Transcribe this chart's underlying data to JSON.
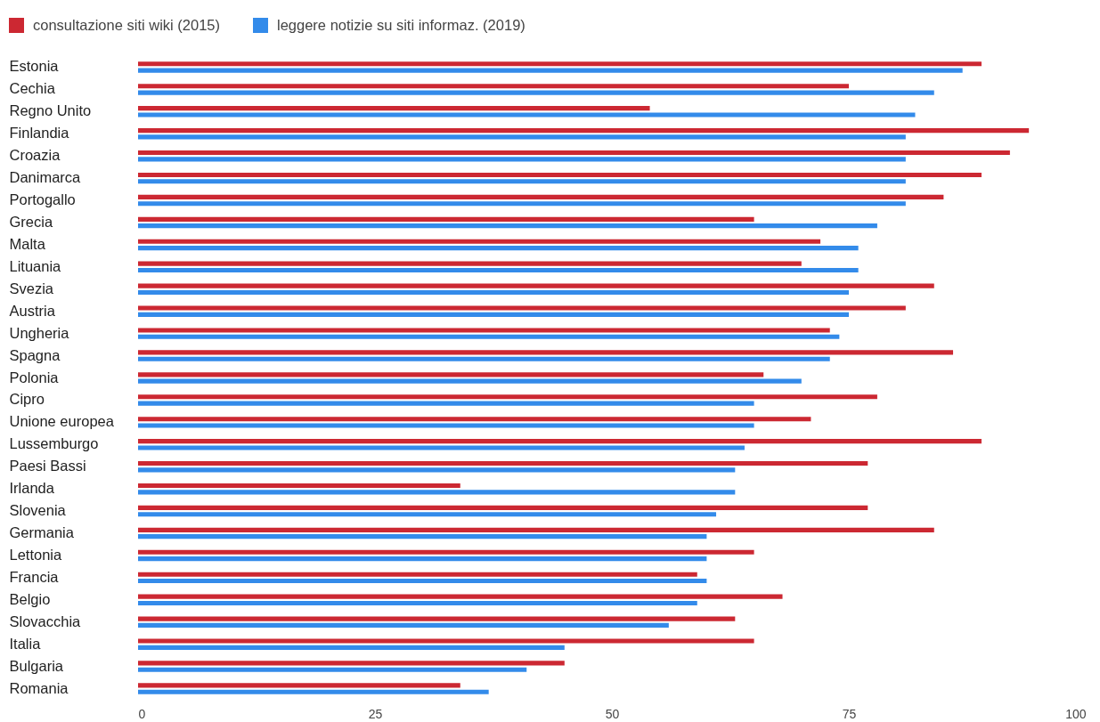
{
  "chart_data": {
    "type": "bar",
    "orientation": "horizontal",
    "categories": [
      "Estonia",
      "Cechia",
      "Regno Unito",
      "Finlandia",
      "Croazia",
      "Danimarca",
      "Portogallo",
      "Grecia",
      "Malta",
      "Lituania",
      "Svezia",
      "Austria",
      "Ungheria",
      "Spagna",
      "Polonia",
      "Cipro",
      "Unione europea",
      "Lussemburgo",
      "Paesi Bassi",
      "Irlanda",
      "Slovenia",
      "Germania",
      "Lettonia",
      "Francia",
      "Belgio",
      "Slovacchia",
      "Italia",
      "Bulgaria",
      "Romania"
    ],
    "series": [
      {
        "name": "consultazione siti wiki (2015)",
        "color": "#cc2832",
        "values": [
          89,
          75,
          54,
          94,
          92,
          89,
          85,
          65,
          72,
          70,
          84,
          81,
          73,
          86,
          66,
          78,
          71,
          89,
          77,
          34,
          77,
          84,
          65,
          59,
          68,
          63,
          65,
          45,
          34
        ]
      },
      {
        "name": "leggere notizie su siti informaz. (2019)",
        "color": "#338bea",
        "values": [
          87,
          84,
          82,
          81,
          81,
          81,
          81,
          78,
          76,
          76,
          75,
          75,
          74,
          73,
          70,
          65,
          65,
          64,
          63,
          63,
          61,
          60,
          60,
          60,
          59,
          56,
          45,
          41,
          37
        ]
      }
    ],
    "xlim": [
      0,
      100
    ],
    "xticks": [
      0,
      25,
      50,
      75,
      100
    ],
    "legend": "top left"
  }
}
